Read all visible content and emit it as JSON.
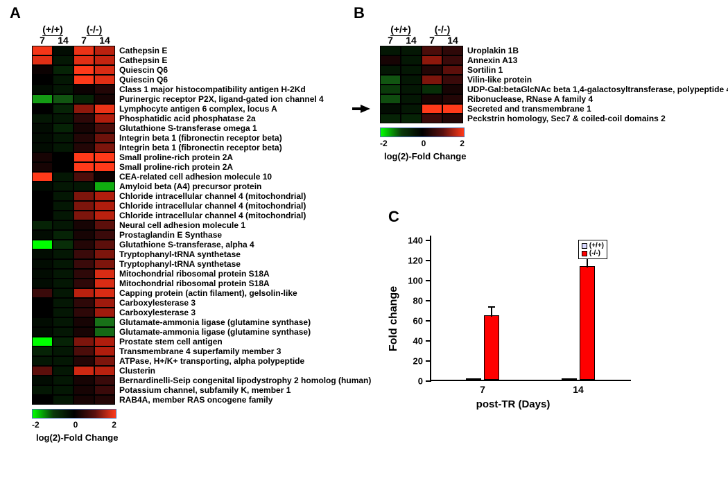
{
  "panelLabels": {
    "A": "A",
    "B": "B",
    "C": "C"
  },
  "heatmapCommon": {
    "groups": [
      "(+/+)",
      "(-/-)"
    ],
    "days": [
      "7",
      "14",
      "7",
      "14"
    ],
    "cellWidthPx": 30,
    "cellHeightPx": 14,
    "cellBorderColor": "#000000",
    "labelFontSizePt": 9,
    "labelFontWeight": "bold",
    "labelColor": "#000000",
    "scale": {
      "min": -2,
      "mid": 0,
      "max": 2,
      "title": "log(2)-Fold Change",
      "gradientCss": "linear-gradient(to right, #00ff00 0%, #0a3a0a 25%, #000000 50%, #5a1010 75%, #ff3a1a 100%)",
      "barBorderColor": "#4a6fb5"
    },
    "valueToColorStops": [
      [
        -2,
        "#00ff00"
      ],
      [
        -1.2,
        "#1a7a1a"
      ],
      [
        -0.5,
        "#0a3a0a"
      ],
      [
        0,
        "#000000"
      ],
      [
        0.5,
        "#3a0a0a"
      ],
      [
        1.2,
        "#b01d0d"
      ],
      [
        2,
        "#ff3a1a"
      ]
    ]
  },
  "panelA": {
    "type": "heatmap",
    "rows": [
      {
        "label": "Cathepsin E",
        "values": [
          1.9,
          -0.1,
          1.8,
          1.3
        ]
      },
      {
        "label": "Cathepsin E",
        "values": [
          1.7,
          -0.2,
          1.7,
          1.4
        ]
      },
      {
        "label": "Quiescin Q6",
        "values": [
          0.1,
          -0.3,
          2.0,
          1.6
        ]
      },
      {
        "label": "Quiescin Q6",
        "values": [
          0.0,
          -0.2,
          2.0,
          1.7
        ]
      },
      {
        "label": "Class 1 major histocompatibility antigen H-2Kd",
        "values": [
          -0.1,
          -0.2,
          0.1,
          0.3
        ]
      },
      {
        "label": "Purinergic receptor P2X, ligand-gated ion channel 4",
        "values": [
          -1.4,
          -0.8,
          -0.3,
          0.2
        ]
      },
      {
        "label": "Lymphocyte antigen 6 complex, locus A",
        "values": [
          0.0,
          -0.3,
          1.0,
          1.8
        ]
      },
      {
        "label": "Phosphatidic acid phosphatase 2a",
        "values": [
          -0.2,
          -0.2,
          0.4,
          1.2
        ]
      },
      {
        "label": "Glutathione S-transferase omega 1",
        "values": [
          -0.1,
          -0.3,
          0.2,
          0.6
        ]
      },
      {
        "label": "Integrin beta 1 (fibronectin receptor beta)",
        "values": [
          -0.1,
          -0.2,
          0.3,
          0.8
        ]
      },
      {
        "label": "Integrin beta 1 (fibronectin receptor beta)",
        "values": [
          -0.1,
          -0.2,
          0.3,
          0.9
        ]
      },
      {
        "label": "Small proline-rich protein 2A",
        "values": [
          0.2,
          0.0,
          2.0,
          2.0
        ]
      },
      {
        "label": "Small proline-rich protein 2A",
        "values": [
          0.2,
          0.0,
          2.0,
          2.0
        ]
      },
      {
        "label": "CEA-related cell adhesion molecule 10",
        "values": [
          2.0,
          -0.2,
          0.6,
          0.1
        ]
      },
      {
        "label": "Amyloid beta (A4) precursor protein",
        "values": [
          -0.1,
          -0.2,
          -0.2,
          -1.5
        ]
      },
      {
        "label": "Chloride intracellular channel 4 (mitochondrial)",
        "values": [
          0.0,
          -0.2,
          0.9,
          1.2
        ]
      },
      {
        "label": "Chloride intracellular channel 4 (mitochondrial)",
        "values": [
          0.0,
          -0.2,
          0.9,
          1.2
        ]
      },
      {
        "label": "Chloride intracellular channel 4 (mitochondrial)",
        "values": [
          0.0,
          -0.2,
          0.9,
          1.3
        ]
      },
      {
        "label": "Neural cell adhesion molecule 1",
        "values": [
          -0.3,
          -0.2,
          0.2,
          0.7
        ]
      },
      {
        "label": "Prostaglandin E Synthase",
        "values": [
          -0.1,
          -0.3,
          0.2,
          0.5
        ]
      },
      {
        "label": "Glutathione S-transferase, alpha 4",
        "values": [
          -2.0,
          -0.4,
          0.3,
          0.7
        ]
      },
      {
        "label": "Tryptophanyl-tRNA synthetase",
        "values": [
          -0.1,
          -0.2,
          0.5,
          0.9
        ]
      },
      {
        "label": "Tryptophanyl-tRNA synthetase",
        "values": [
          -0.1,
          -0.2,
          0.5,
          0.9
        ]
      },
      {
        "label": "Mitochondrial ribosomal protein S18A",
        "values": [
          -0.1,
          -0.2,
          0.4,
          1.6
        ]
      },
      {
        "label": "Mitochondrial ribosomal protein S18A",
        "values": [
          -0.1,
          -0.2,
          0.4,
          1.6
        ]
      },
      {
        "label": "Capping protein (actin filament), gelsolin-like",
        "values": [
          0.5,
          -0.2,
          1.3,
          1.6
        ]
      },
      {
        "label": "Carboxylesterase 3",
        "values": [
          0.0,
          -0.2,
          0.4,
          1.1
        ]
      },
      {
        "label": "Carboxylesterase 3",
        "values": [
          0.0,
          -0.2,
          0.4,
          1.1
        ]
      },
      {
        "label": "Glutamate-ammonia ligase (glutamine synthase)",
        "values": [
          -0.1,
          -0.2,
          0.2,
          -1.1
        ]
      },
      {
        "label": "Glutamate-ammonia ligase (glutamine synthase)",
        "values": [
          -0.1,
          -0.2,
          0.2,
          -1.0
        ]
      },
      {
        "label": "Prostate stem cell antigen",
        "values": [
          -2.0,
          -0.3,
          0.9,
          1.2
        ]
      },
      {
        "label": "Transmembrane 4 superfamily member 3",
        "values": [
          -0.3,
          -0.2,
          0.6,
          1.2
        ]
      },
      {
        "label": "ATPase, H+/K+ transporting, alpha polypeptide",
        "values": [
          -0.2,
          -0.2,
          0.3,
          0.9
        ]
      },
      {
        "label": "Clusterin",
        "values": [
          0.7,
          -0.2,
          1.5,
          1.3
        ]
      },
      {
        "label": "Bernardinelli-Seip congenital lipodystrophy 2 homolog (human)",
        "values": [
          -0.1,
          -0.2,
          0.2,
          0.5
        ]
      },
      {
        "label": "Potassium channel, subfamily K, member 1",
        "values": [
          -0.2,
          -0.2,
          0.2,
          0.5
        ]
      },
      {
        "label": "RAB4A, member RAS oncogene family",
        "values": [
          0.0,
          -0.2,
          0.2,
          0.3
        ]
      }
    ]
  },
  "panelB": {
    "type": "heatmap",
    "arrowRowIndex": 6,
    "rows": [
      {
        "label": "Uroplakin 1B",
        "values": [
          -0.2,
          -0.2,
          0.6,
          0.4
        ]
      },
      {
        "label": "Annexin A13",
        "values": [
          0.2,
          -0.2,
          1.0,
          0.5
        ]
      },
      {
        "label": "Sortilin 1",
        "values": [
          -0.2,
          -0.2,
          0.3,
          0.7
        ]
      },
      {
        "label": "Vilin-like protein",
        "values": [
          -0.8,
          -0.2,
          0.9,
          0.5
        ]
      },
      {
        "label": "UDP-Gal:betaGlcNAc beta 1,4-galactosyltransferase, polypeptide 4",
        "values": [
          -0.5,
          -0.2,
          -0.4,
          0.2
        ]
      },
      {
        "label": "Ribonuclease, RNase A family 4",
        "values": [
          -0.7,
          -0.2,
          0.2,
          0.3
        ]
      },
      {
        "label": "Secreted and transmembrane 1",
        "values": [
          -0.1,
          -0.2,
          2.0,
          2.0
        ]
      },
      {
        "label": "Peckstrin homology, Sec7 & coiled-coil domains 2",
        "values": [
          -0.3,
          -0.3,
          0.5,
          0.3
        ]
      }
    ]
  },
  "panelC": {
    "type": "bar",
    "ylabel": "Fold change",
    "xlabel": "post-TR (Days)",
    "ylim": [
      0,
      145
    ],
    "yticks": [
      0,
      20,
      40,
      60,
      80,
      100,
      120,
      140
    ],
    "categories": [
      "7",
      "14"
    ],
    "series": [
      {
        "name": "(+/+)",
        "color": "#d9d9ff",
        "border": "#000000"
      },
      {
        "name": "(-/-)",
        "color": "#ff0000",
        "border": "#000000"
      }
    ],
    "data": {
      "7": {
        "(+/+)": {
          "value": 1.0,
          "err": 0.5
        },
        "(-/-)": {
          "value": 64,
          "err": 10
        }
      },
      "14": {
        "(+/+)": {
          "value": 1.5,
          "err": 0.5
        },
        "(-/-)": {
          "value": 113,
          "err": 23
        }
      }
    },
    "barWidthPx": 22,
    "groupGapPx": 90,
    "barGapPx": 4,
    "axisColor": "#000000",
    "font": {
      "label": 15,
      "tick": 13
    }
  }
}
